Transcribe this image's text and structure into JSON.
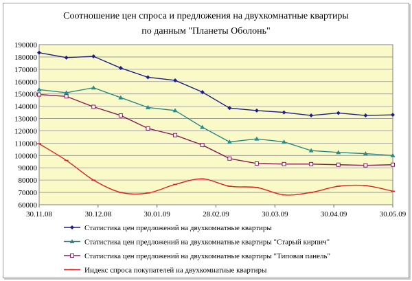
{
  "chart_data": {
    "type": "line",
    "title_lines": [
      "Соотношение цен спроса и предложения на двухкомнатные квартиры",
      "по данным \"Планеты Оболонь\""
    ],
    "ylim": [
      60000,
      190000
    ],
    "y_ticks": [
      60000,
      70000,
      80000,
      90000,
      100000,
      110000,
      120000,
      130000,
      140000,
      150000,
      160000,
      170000,
      180000,
      190000
    ],
    "x_tick_labels": [
      "30.11.08",
      "30.12.08",
      "30.01.09",
      "28.02.09",
      "30.03.09",
      "30.04.09",
      "30.05.09"
    ],
    "grid": "horizontal",
    "legend_position": "bottom",
    "series": [
      {
        "name": "Статистика цен предложений на двухкомнатные квартиры",
        "color": "#1c1c8c",
        "marker": "diamond",
        "smooth": false,
        "values": [
          183500,
          179500,
          180500,
          171000,
          163500,
          161000,
          151500,
          138500,
          136500,
          135000,
          132500,
          134500,
          132500,
          133000
        ]
      },
      {
        "name": "Статистика цен предложений на двухкомнатные квартиры \"Старый кирпич\"",
        "color": "#2a8a8a",
        "marker": "triangle",
        "smooth": false,
        "values": [
          153500,
          151000,
          155000,
          147000,
          139000,
          136500,
          123000,
          111000,
          113500,
          111000,
          104000,
          102500,
          101500,
          100000
        ]
      },
      {
        "name": "Статистика цен предложений на двухкомнатные квартиры \"Типовая панель\"",
        "color": "#8a1a5a",
        "marker": "square",
        "smooth": false,
        "values": [
          149500,
          148000,
          139500,
          132500,
          122000,
          116500,
          108500,
          97500,
          93500,
          93000,
          93000,
          92500,
          92000,
          92500
        ]
      },
      {
        "name": "Индекс спроса покупателей на двухкомнатные квартиры",
        "color": "#e02020",
        "marker": "dash",
        "smooth": true,
        "values": [
          109500,
          96000,
          80000,
          70000,
          69500,
          76500,
          81000,
          75000,
          74000,
          68000,
          70000,
          75000,
          75500,
          71000
        ]
      }
    ]
  }
}
